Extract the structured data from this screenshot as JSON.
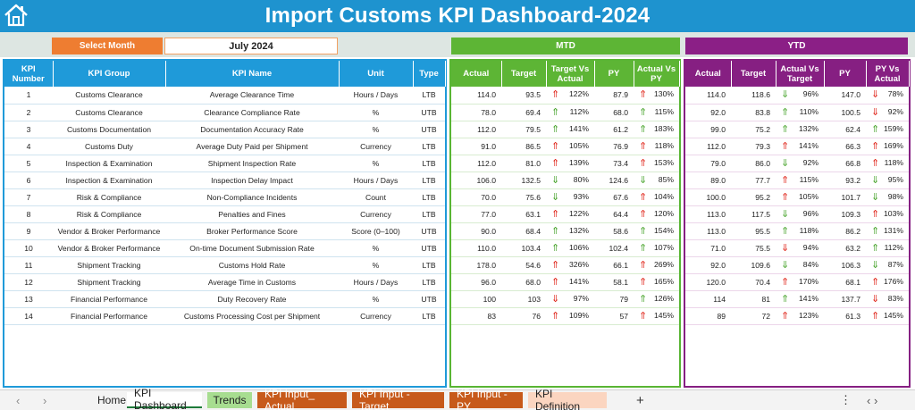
{
  "title": "Import Customs KPI Dashboard-2024",
  "select_month_label": "Select Month",
  "month_value": "July 2024",
  "mtd_label": "MTD",
  "ytd_label": "YTD",
  "headers": {
    "kpi_number": "KPI Number",
    "kpi_group": "KPI Group",
    "kpi_name": "KPI Name",
    "unit": "Unit",
    "type": "Type",
    "mtd": [
      "Actual",
      "Target",
      "Target Vs Actual",
      "PY",
      "Actual Vs PY"
    ],
    "ytd": [
      "Actual",
      "Target",
      "Actual Vs Target",
      "PY",
      "PY Vs Actual"
    ]
  },
  "colors": {
    "title_bar": "#1e93cf",
    "mtd": "#5db535",
    "ytd": "#861f82",
    "select": "#ee7d31",
    "arrow_red": "#e0261b",
    "arrow_green": "#4aa52e"
  },
  "rows": [
    {
      "n": "1",
      "group": "Customs Clearance",
      "name": "Average Clearance Time",
      "unit": "Hours / Days",
      "type": "LTB",
      "mtd": {
        "actual": "114.0",
        "target": "93.5",
        "tva": "122%",
        "tva_icon": "up-red",
        "py": "87.9",
        "avp": "130%",
        "avp_icon": "up-red"
      },
      "ytd": {
        "actual": "114.0",
        "target": "118.6",
        "avt": "96%",
        "avt_icon": "down-green",
        "py": "147.0",
        "pva": "78%",
        "pva_icon": "down-red"
      }
    },
    {
      "n": "2",
      "group": "Customs Clearance",
      "name": "Clearance Compliance Rate",
      "unit": "%",
      "type": "UTB",
      "mtd": {
        "actual": "78.0",
        "target": "69.4",
        "tva": "112%",
        "tva_icon": "up-green",
        "py": "68.0",
        "avp": "115%",
        "avp_icon": "up-green"
      },
      "ytd": {
        "actual": "92.0",
        "target": "83.8",
        "avt": "110%",
        "avt_icon": "up-green",
        "py": "100.5",
        "pva": "92%",
        "pva_icon": "down-red"
      }
    },
    {
      "n": "3",
      "group": "Customs Documentation",
      "name": "Documentation Accuracy Rate",
      "unit": "%",
      "type": "UTB",
      "mtd": {
        "actual": "112.0",
        "target": "79.5",
        "tva": "141%",
        "tva_icon": "up-green",
        "py": "61.2",
        "avp": "183%",
        "avp_icon": "up-green"
      },
      "ytd": {
        "actual": "99.0",
        "target": "75.2",
        "avt": "132%",
        "avt_icon": "up-green",
        "py": "62.4",
        "pva": "159%",
        "pva_icon": "up-green"
      }
    },
    {
      "n": "4",
      "group": "Customs Duty",
      "name": "Average Duty Paid per Shipment",
      "unit": "Currency",
      "type": "LTB",
      "mtd": {
        "actual": "91.0",
        "target": "86.5",
        "tva": "105%",
        "tva_icon": "up-red",
        "py": "76.9",
        "avp": "118%",
        "avp_icon": "up-red"
      },
      "ytd": {
        "actual": "112.0",
        "target": "79.3",
        "avt": "141%",
        "avt_icon": "up-red",
        "py": "66.3",
        "pva": "169%",
        "pva_icon": "up-red"
      }
    },
    {
      "n": "5",
      "group": "Inspection & Examination",
      "name": "Shipment Inspection Rate",
      "unit": "%",
      "type": "LTB",
      "mtd": {
        "actual": "112.0",
        "target": "81.0",
        "tva": "139%",
        "tva_icon": "up-red",
        "py": "73.4",
        "avp": "153%",
        "avp_icon": "up-red"
      },
      "ytd": {
        "actual": "79.0",
        "target": "86.0",
        "avt": "92%",
        "avt_icon": "down-green",
        "py": "66.8",
        "pva": "118%",
        "pva_icon": "up-red"
      }
    },
    {
      "n": "6",
      "group": "Inspection & Examination",
      "name": "Inspection Delay Impact",
      "unit": "Hours / Days",
      "type": "LTB",
      "mtd": {
        "actual": "106.0",
        "target": "132.5",
        "tva": "80%",
        "tva_icon": "down-green",
        "py": "124.6",
        "avp": "85%",
        "avp_icon": "down-green"
      },
      "ytd": {
        "actual": "89.0",
        "target": "77.7",
        "avt": "115%",
        "avt_icon": "up-red",
        "py": "93.2",
        "pva": "95%",
        "pva_icon": "down-green"
      }
    },
    {
      "n": "7",
      "group": "Risk & Compliance",
      "name": "Non-Compliance Incidents",
      "unit": "Count",
      "type": "LTB",
      "mtd": {
        "actual": "70.0",
        "target": "75.6",
        "tva": "93%",
        "tva_icon": "down-green",
        "py": "67.6",
        "avp": "104%",
        "avp_icon": "up-red"
      },
      "ytd": {
        "actual": "100.0",
        "target": "95.2",
        "avt": "105%",
        "avt_icon": "up-red",
        "py": "101.7",
        "pva": "98%",
        "pva_icon": "down-green"
      }
    },
    {
      "n": "8",
      "group": "Risk & Compliance",
      "name": "Penalties and Fines",
      "unit": "Currency",
      "type": "LTB",
      "mtd": {
        "actual": "77.0",
        "target": "63.1",
        "tva": "122%",
        "tva_icon": "up-red",
        "py": "64.4",
        "avp": "120%",
        "avp_icon": "up-red"
      },
      "ytd": {
        "actual": "113.0",
        "target": "117.5",
        "avt": "96%",
        "avt_icon": "down-green",
        "py": "109.3",
        "pva": "103%",
        "pva_icon": "up-red"
      }
    },
    {
      "n": "9",
      "group": "Vendor & Broker Performance",
      "name": "Broker Performance Score",
      "unit": "Score (0–100)",
      "type": "UTB",
      "mtd": {
        "actual": "90.0",
        "target": "68.4",
        "tva": "132%",
        "tva_icon": "up-green",
        "py": "58.6",
        "avp": "154%",
        "avp_icon": "up-green"
      },
      "ytd": {
        "actual": "113.0",
        "target": "95.5",
        "avt": "118%",
        "avt_icon": "up-green",
        "py": "86.2",
        "pva": "131%",
        "pva_icon": "up-green"
      }
    },
    {
      "n": "10",
      "group": "Vendor & Broker Performance",
      "name": "On-time Document Submission Rate",
      "unit": "%",
      "type": "UTB",
      "mtd": {
        "actual": "110.0",
        "target": "103.4",
        "tva": "106%",
        "tva_icon": "up-green",
        "py": "102.4",
        "avp": "107%",
        "avp_icon": "up-green"
      },
      "ytd": {
        "actual": "71.0",
        "target": "75.5",
        "avt": "94%",
        "avt_icon": "down-red",
        "py": "63.2",
        "pva": "112%",
        "pva_icon": "up-green"
      }
    },
    {
      "n": "11",
      "group": "Shipment Tracking",
      "name": "Customs Hold Rate",
      "unit": "%",
      "type": "LTB",
      "mtd": {
        "actual": "178.0",
        "target": "54.6",
        "tva": "326%",
        "tva_icon": "up-red",
        "py": "66.1",
        "avp": "269%",
        "avp_icon": "up-red"
      },
      "ytd": {
        "actual": "92.0",
        "target": "109.6",
        "avt": "84%",
        "avt_icon": "down-green",
        "py": "106.3",
        "pva": "87%",
        "pva_icon": "down-green"
      }
    },
    {
      "n": "12",
      "group": "Shipment Tracking",
      "name": "Average Time in Customs",
      "unit": "Hours / Days",
      "type": "LTB",
      "mtd": {
        "actual": "96.0",
        "target": "68.0",
        "tva": "141%",
        "tva_icon": "up-red",
        "py": "58.1",
        "avp": "165%",
        "avp_icon": "up-red"
      },
      "ytd": {
        "actual": "120.0",
        "target": "70.4",
        "avt": "170%",
        "avt_icon": "up-red",
        "py": "68.1",
        "pva": "176%",
        "pva_icon": "up-red"
      }
    },
    {
      "n": "13",
      "group": "Financial Performance",
      "name": "Duty Recovery Rate",
      "unit": "%",
      "type": "UTB",
      "mtd": {
        "actual": "100",
        "target": "103",
        "tva": "97%",
        "tva_icon": "down-red",
        "py": "79",
        "avp": "126%",
        "avp_icon": "up-green"
      },
      "ytd": {
        "actual": "114",
        "target": "81",
        "avt": "141%",
        "avt_icon": "up-green",
        "py": "137.7",
        "pva": "83%",
        "pva_icon": "down-red"
      }
    },
    {
      "n": "14",
      "group": "Financial Performance",
      "name": "Customs Processing Cost per Shipment",
      "unit": "Currency",
      "type": "LTB",
      "mtd": {
        "actual": "83",
        "target": "76",
        "tva": "109%",
        "tva_icon": "up-red",
        "py": "57",
        "avp": "145%",
        "avp_icon": "up-red"
      },
      "ytd": {
        "actual": "89",
        "target": "72",
        "avt": "123%",
        "avt_icon": "up-red",
        "py": "61.3",
        "pva": "145%",
        "pva_icon": "up-red"
      }
    }
  ],
  "tabs": [
    {
      "label": "Home",
      "bg": "#f3f3f3",
      "color": "#222222",
      "active": false
    },
    {
      "label": "KPI Dashboard",
      "bg": "#ffffff",
      "color": "#222222",
      "active": true
    },
    {
      "label": "Trends",
      "bg": "#a7dd90",
      "color": "#222222",
      "active": false
    },
    {
      "label": "KPI Input_ Actual",
      "bg": "#c75a1b",
      "color": "#ffffff",
      "active": false
    },
    {
      "label": "KPI Input - Target",
      "bg": "#c75a1b",
      "color": "#ffffff",
      "active": false
    },
    {
      "label": "KPI Input - PY",
      "bg": "#c75a1b",
      "color": "#ffffff",
      "active": false
    },
    {
      "label": "KPI Definition",
      "bg": "#fbd5c0",
      "color": "#222222",
      "active": false
    }
  ],
  "add_sheet": "+",
  "more_menu": "⋮",
  "nav_prev": "‹",
  "nav_next": "›"
}
